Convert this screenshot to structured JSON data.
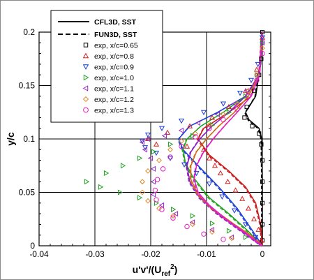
{
  "chart_data": {
    "type": "scatter",
    "xlabel": "u'v'/(U_ref^2)",
    "ylabel": "y/c",
    "xlim": [
      -0.04,
      0.0015
    ],
    "ylim": [
      0,
      0.2
    ],
    "xticks": [
      -0.04,
      -0.03,
      -0.02,
      -0.01,
      0
    ],
    "xtick_labels": [
      "-0.04",
      "-0.03",
      "-0.02",
      "-0.01",
      "0"
    ],
    "yticks": [
      0,
      0.05,
      0.1,
      0.15,
      0.2
    ],
    "ytick_labels": [
      "0",
      "0.05",
      "0.1",
      "0.15",
      "0.2"
    ],
    "grid": true,
    "legend_position": "top-left",
    "legend": [
      {
        "label": "CFL3D, SST",
        "style": "solid-line"
      },
      {
        "label": "FUN3D, SST",
        "style": "dashed-line"
      },
      {
        "label": "exp, x/c=0.65",
        "marker": "square",
        "color": "#000000"
      },
      {
        "label": "exp, x/c=0.8",
        "marker": "triangle-up",
        "color": "#d62020"
      },
      {
        "label": "exp, x/c=0.9",
        "marker": "triangle-down",
        "color": "#1a3cd8"
      },
      {
        "label": "exp, x/c=1.0",
        "marker": "triangle-right",
        "color": "#1fa31f"
      },
      {
        "label": "exp, x/c=1.1",
        "marker": "triangle-left",
        "color": "#9a2ad0"
      },
      {
        "label": "exp, x/c=1.2",
        "marker": "diamond",
        "color": "#e08a2a"
      },
      {
        "label": "exp, x/c=1.3",
        "marker": "circle",
        "color": "#e020c0"
      }
    ],
    "cfd_series": [
      {
        "name": "x/c=0.65",
        "color": "#000000",
        "points": [
          [
            0,
            0.2
          ],
          [
            -0.0003,
            0.17
          ],
          [
            -0.0012,
            0.14
          ],
          [
            -0.003,
            0.125
          ],
          [
            -0.0024,
            0.118
          ],
          [
            -0.0006,
            0.11
          ],
          [
            -0.0001,
            0.1
          ],
          [
            0,
            0.06
          ],
          [
            0,
            0
          ]
        ]
      },
      {
        "name": "x/c=0.8",
        "color": "#c81818",
        "points": [
          [
            0,
            0.2
          ],
          [
            -0.0005,
            0.16
          ],
          [
            -0.002,
            0.14
          ],
          [
            -0.006,
            0.125
          ],
          [
            -0.0105,
            0.11
          ],
          [
            -0.0115,
            0.1
          ],
          [
            -0.0095,
            0.085
          ],
          [
            -0.006,
            0.07
          ],
          [
            -0.003,
            0.055
          ],
          [
            -0.0012,
            0.04
          ],
          [
            -0.0003,
            0.02
          ],
          [
            0,
            0
          ]
        ]
      },
      {
        "name": "x/c=0.9",
        "color": "#1a3cd8",
        "points": [
          [
            0,
            0.2
          ],
          [
            -0.0005,
            0.16
          ],
          [
            -0.003,
            0.14
          ],
          [
            -0.008,
            0.125
          ],
          [
            -0.013,
            0.112
          ],
          [
            -0.015,
            0.1
          ],
          [
            -0.0142,
            0.09
          ],
          [
            -0.0115,
            0.075
          ],
          [
            -0.0078,
            0.055
          ],
          [
            -0.0045,
            0.035
          ],
          [
            -0.0015,
            0.012
          ],
          [
            0,
            0
          ]
        ]
      },
      {
        "name": "x/c=1.0",
        "color": "#1fa31f",
        "points": [
          [
            0,
            0.2
          ],
          [
            -0.0005,
            0.16
          ],
          [
            -0.003,
            0.14
          ],
          [
            -0.007,
            0.125
          ],
          [
            -0.011,
            0.112
          ],
          [
            -0.0135,
            0.1
          ],
          [
            -0.0142,
            0.09
          ],
          [
            -0.0138,
            0.078
          ],
          [
            -0.0125,
            0.065
          ],
          [
            -0.0095,
            0.045
          ],
          [
            -0.006,
            0.03
          ],
          [
            -0.0028,
            0.015
          ],
          [
            0,
            0
          ]
        ]
      },
      {
        "name": "x/c=1.1",
        "color": "#8a1ac8",
        "points": [
          [
            0,
            0.2
          ],
          [
            -0.0005,
            0.16
          ],
          [
            -0.003,
            0.14
          ],
          [
            -0.006,
            0.125
          ],
          [
            -0.009,
            0.112
          ],
          [
            -0.0112,
            0.1
          ],
          [
            -0.0128,
            0.088
          ],
          [
            -0.0135,
            0.075
          ],
          [
            -0.013,
            0.06
          ],
          [
            -0.0112,
            0.045
          ],
          [
            -0.008,
            0.03
          ],
          [
            -0.004,
            0.015
          ],
          [
            0,
            0
          ]
        ]
      },
      {
        "name": "x/c=1.2",
        "color": "#d06a1a",
        "points": [
          [
            0,
            0.2
          ],
          [
            -0.0005,
            0.16
          ],
          [
            -0.0025,
            0.14
          ],
          [
            -0.005,
            0.125
          ],
          [
            -0.0078,
            0.112
          ],
          [
            -0.01,
            0.1
          ],
          [
            -0.0118,
            0.088
          ],
          [
            -0.0128,
            0.075
          ],
          [
            -0.0128,
            0.062
          ],
          [
            -0.0115,
            0.048
          ],
          [
            -0.009,
            0.035
          ],
          [
            -0.005,
            0.02
          ],
          [
            -0.0015,
            0.008
          ],
          [
            0,
            0
          ]
        ]
      },
      {
        "name": "x/c=1.3",
        "color": "#e020c0",
        "points": [
          [
            0,
            0.2
          ],
          [
            -0.0005,
            0.16
          ],
          [
            -0.002,
            0.14
          ],
          [
            -0.0045,
            0.125
          ],
          [
            -0.0068,
            0.112
          ],
          [
            -0.0088,
            0.1
          ],
          [
            -0.0105,
            0.088
          ],
          [
            -0.0118,
            0.075
          ],
          [
            -0.0122,
            0.062
          ],
          [
            -0.0115,
            0.05
          ],
          [
            -0.0095,
            0.038
          ],
          [
            -0.0065,
            0.025
          ],
          [
            -0.003,
            0.012
          ],
          [
            0,
            0
          ]
        ]
      }
    ],
    "exp_series": [
      {
        "name": "exp, x/c=0.65",
        "marker": "square",
        "color": "#000000",
        "points": [
          [
            0,
            0.2
          ],
          [
            0,
            0.19
          ],
          [
            -0.0002,
            0.175
          ],
          [
            -0.0006,
            0.16
          ],
          [
            -0.0015,
            0.145
          ],
          [
            -0.0028,
            0.13
          ],
          [
            -0.0032,
            0.12
          ],
          [
            -0.0018,
            0.112
          ],
          [
            -0.0006,
            0.105
          ],
          [
            -0.0002,
            0.095
          ],
          [
            0,
            0.08
          ],
          [
            0,
            0.06
          ],
          [
            0,
            0.04
          ],
          [
            0,
            0.02
          ],
          [
            0,
            0.005
          ]
        ]
      },
      {
        "name": "exp, x/c=0.8",
        "marker": "triangle-up",
        "color": "#d62020",
        "points": [
          [
            0,
            0.195
          ],
          [
            -0.001,
            0.165
          ],
          [
            -0.003,
            0.145
          ],
          [
            -0.006,
            0.13
          ],
          [
            -0.009,
            0.12
          ],
          [
            -0.013,
            0.112
          ],
          [
            -0.017,
            0.106
          ],
          [
            -0.0205,
            0.1
          ],
          [
            -0.019,
            0.095
          ],
          [
            -0.0135,
            0.093
          ],
          [
            -0.0105,
            0.09
          ],
          [
            -0.0095,
            0.082
          ],
          [
            -0.0085,
            0.075
          ],
          [
            -0.0075,
            0.068
          ],
          [
            -0.0062,
            0.06
          ],
          [
            -0.0048,
            0.052
          ],
          [
            -0.0036,
            0.044
          ],
          [
            -0.0025,
            0.035
          ],
          [
            -0.0015,
            0.025
          ],
          [
            -0.0007,
            0.015
          ],
          [
            -0.0002,
            0.005
          ]
        ]
      },
      {
        "name": "exp, x/c=0.9",
        "marker": "triangle-down",
        "color": "#1a3cd8",
        "points": [
          [
            0,
            0.195
          ],
          [
            -0.0008,
            0.17
          ],
          [
            -0.002,
            0.155
          ],
          [
            -0.004,
            0.143
          ],
          [
            -0.007,
            0.133
          ],
          [
            -0.0105,
            0.125
          ],
          [
            -0.0145,
            0.117
          ],
          [
            -0.018,
            0.11
          ],
          [
            -0.0205,
            0.104
          ],
          [
            -0.0215,
            0.098
          ],
          [
            -0.021,
            0.092
          ],
          [
            -0.019,
            0.087
          ],
          [
            -0.0165,
            0.082
          ],
          [
            -0.014,
            0.076
          ],
          [
            -0.0118,
            0.068
          ],
          [
            -0.0095,
            0.058
          ],
          [
            -0.0072,
            0.046
          ],
          [
            -0.005,
            0.033
          ],
          [
            -0.003,
            0.02
          ],
          [
            -0.0012,
            0.008
          ]
        ]
      },
      {
        "name": "exp, x/c=1.0",
        "marker": "triangle-right",
        "color": "#1fa31f",
        "points": [
          [
            0,
            0.19
          ],
          [
            -0.001,
            0.16
          ],
          [
            -0.003,
            0.14
          ],
          [
            -0.006,
            0.125
          ],
          [
            -0.009,
            0.113
          ],
          [
            -0.0125,
            0.103
          ],
          [
            -0.0165,
            0.095
          ],
          [
            -0.0195,
            0.088
          ],
          [
            -0.022,
            0.082
          ],
          [
            -0.025,
            0.075
          ],
          [
            -0.028,
            0.068
          ],
          [
            -0.0315,
            0.06
          ],
          [
            -0.029,
            0.055
          ],
          [
            -0.0255,
            0.05
          ],
          [
            -0.022,
            0.045
          ],
          [
            -0.019,
            0.04
          ],
          [
            -0.016,
            0.034
          ],
          [
            -0.0125,
            0.028
          ],
          [
            -0.009,
            0.021
          ],
          [
            -0.006,
            0.014
          ],
          [
            -0.003,
            0.008
          ]
        ]
      },
      {
        "name": "exp, x/c=1.1",
        "marker": "triangle-left",
        "color": "#9a2ad0",
        "points": [
          [
            0,
            0.19
          ],
          [
            -0.001,
            0.16
          ],
          [
            -0.0028,
            0.145
          ],
          [
            -0.005,
            0.133
          ],
          [
            -0.008,
            0.123
          ],
          [
            -0.0115,
            0.115
          ],
          [
            -0.0145,
            0.108
          ],
          [
            -0.0175,
            0.103
          ],
          [
            -0.0205,
            0.1
          ],
          [
            -0.0215,
            0.097
          ],
          [
            -0.021,
            0.09
          ],
          [
            -0.02,
            0.082
          ],
          [
            -0.0195,
            0.072
          ],
          [
            -0.0195,
            0.06
          ],
          [
            -0.0195,
            0.048
          ],
          [
            -0.018,
            0.038
          ],
          [
            -0.0155,
            0.03
          ],
          [
            -0.0125,
            0.022
          ],
          [
            -0.009,
            0.015
          ],
          [
            -0.0055,
            0.008
          ]
        ]
      },
      {
        "name": "exp, x/c=1.2",
        "marker": "diamond",
        "color": "#e08a2a",
        "points": [
          [
            0,
            0.185
          ],
          [
            -0.001,
            0.16
          ],
          [
            -0.0025,
            0.145
          ],
          [
            -0.0045,
            0.133
          ],
          [
            -0.007,
            0.123
          ],
          [
            -0.0095,
            0.113
          ],
          [
            -0.012,
            0.105
          ],
          [
            -0.0145,
            0.098
          ],
          [
            -0.0165,
            0.09
          ],
          [
            -0.0185,
            0.08
          ],
          [
            -0.0205,
            0.07
          ],
          [
            -0.0215,
            0.06
          ],
          [
            -0.0215,
            0.05
          ],
          [
            -0.0205,
            0.042
          ],
          [
            -0.0185,
            0.035
          ],
          [
            -0.016,
            0.028
          ],
          [
            -0.0125,
            0.02
          ],
          [
            -0.009,
            0.013
          ],
          [
            -0.0055,
            0.007
          ]
        ]
      },
      {
        "name": "exp, x/c=1.3",
        "marker": "circle",
        "color": "#e020c0",
        "points": [
          [
            0,
            0.18
          ],
          [
            -0.001,
            0.155
          ],
          [
            -0.0025,
            0.14
          ],
          [
            -0.0045,
            0.128
          ],
          [
            -0.007,
            0.118
          ],
          [
            -0.0095,
            0.11
          ],
          [
            -0.012,
            0.102
          ],
          [
            -0.0145,
            0.093
          ],
          [
            -0.0165,
            0.083
          ],
          [
            -0.0178,
            0.072
          ],
          [
            -0.0188,
            0.062
          ],
          [
            -0.0192,
            0.052
          ],
          [
            -0.019,
            0.043
          ],
          [
            -0.018,
            0.034
          ],
          [
            -0.016,
            0.026
          ],
          [
            -0.0135,
            0.018
          ],
          [
            -0.0105,
            0.011
          ],
          [
            -0.007,
            0.006
          ]
        ]
      }
    ]
  }
}
